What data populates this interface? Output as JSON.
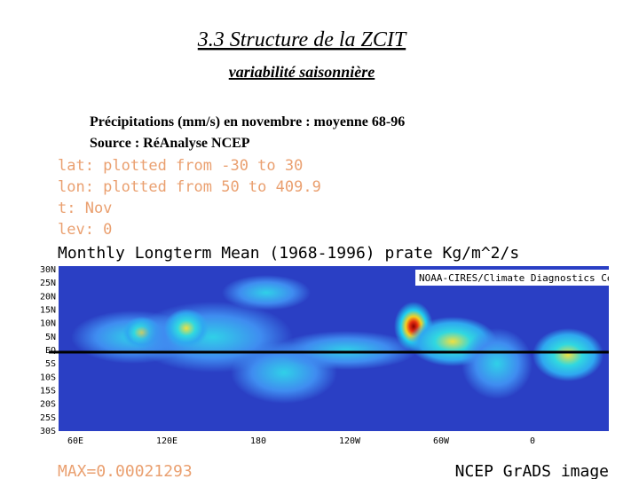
{
  "header": {
    "title": "3.3 Structure de la ZCIT",
    "subtitle": "variabilité saisonnière"
  },
  "caption": {
    "lines": [
      "Précipitations (mm/s) en novembre : moyenne 68-96",
      "Source :  RéAnalyse NCEP"
    ]
  },
  "grads": {
    "info": [
      "lat: plotted from -30 to 30",
      "lon: plotted from 50 to 409.9",
      "t: Nov",
      "lev: 0"
    ],
    "map_title": "Monthly Longterm Mean (1968-1996) prate Kg/m^2/s",
    "credit": "NOAA-CIRES/Climate Diagnostics Center",
    "lat_labels": [
      "30N",
      "25N",
      "20N",
      "15N",
      "10N",
      "5N",
      "EQ",
      "5S",
      "10S",
      "15S",
      "20S",
      "25S",
      "30S"
    ],
    "lon_labels": [
      "60E",
      "120E",
      "180",
      "120W",
      "60W",
      "0"
    ],
    "max": "MAX=0.00021293",
    "footer": "NCEP GrADS image"
  }
}
